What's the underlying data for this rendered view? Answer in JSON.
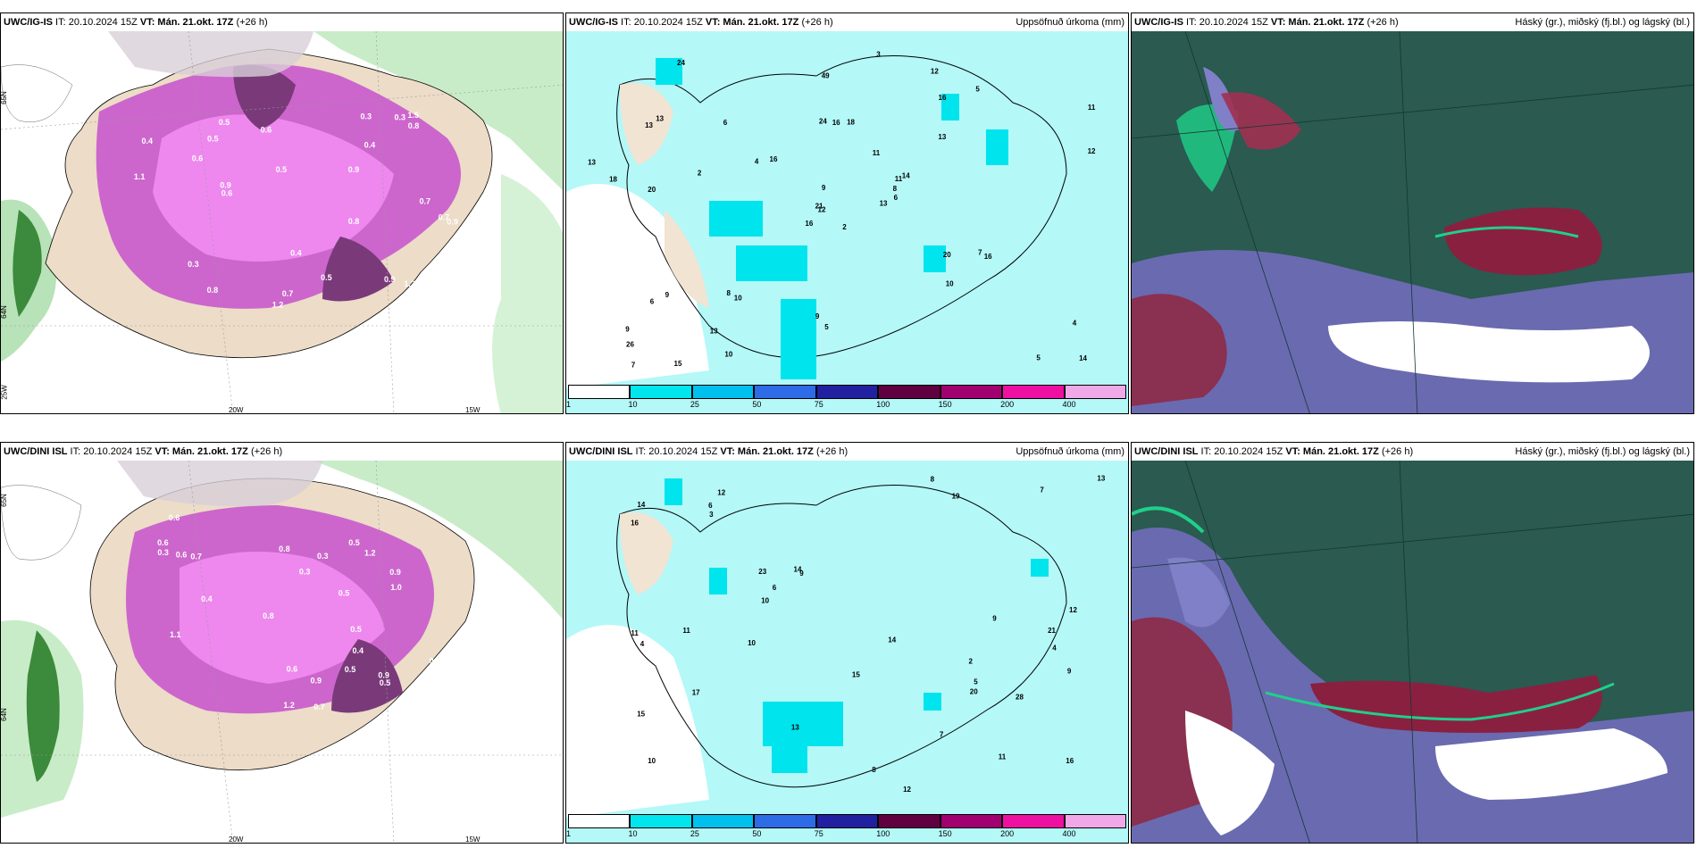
{
  "panels": {
    "top_left": {
      "title_model": "UWC/IG-IS",
      "title_rest": " IT: 20.10.2024 15Z ",
      "title_vt": "VT: Mán. 21.okt. 17Z",
      "title_tail": " (+26 h)",
      "lat_a": "65N",
      "lat_b": "64N",
      "lon_a": "25W",
      "lon_b": "20W",
      "lon_c": "15W"
    },
    "top_mid": {
      "title_model": "UWC/IG-IS",
      "title_rest": " IT: 20.10.2024 15Z ",
      "title_vt": "VT: Mán. 21.okt. 17Z",
      "title_tail": " (+26 h)",
      "right_label": "Uppsöfnuð úrkoma (mm)"
    },
    "top_right": {
      "title_model": "UWC/IG-IS",
      "title_rest": " IT: 20.10.2024 15Z ",
      "title_vt": "VT: Mán. 21.okt. 17Z",
      "title_tail": " (+26 h)",
      "right_label": "Háský (gr.), miðský (fj.bl.) og lágský (bl.)"
    },
    "bot_left": {
      "title_model": "UWC/DINI ISL",
      "title_rest": " IT: 20.10.2024 15Z ",
      "title_vt": "VT: Mán. 21.okt. 17Z",
      "title_tail": " (+26 h)",
      "lat_a": "65N",
      "lat_b": "64N",
      "lon_b": "20W",
      "lon_c": "15W"
    },
    "bot_mid": {
      "title_model": "UWC/DINI ISL",
      "title_rest": " IT: 20.10.2024 15Z ",
      "title_vt": "VT: Mán. 21.okt. 17Z",
      "title_tail": " (+26 h)",
      "right_label": "Uppsöfnuð úrkoma (mm)"
    },
    "bot_right": {
      "title_model": "UWC/DINI ISL",
      "title_rest": " IT: 20.10.2024 15Z ",
      "title_vt": "VT: Mán. 21.okt. 17Z",
      "title_tail": " (+26 h)",
      "right_label": "Háský (gr.), miðský (fj.bl.) og lágský (bl.)"
    }
  },
  "colorbar": {
    "ticks": [
      "1",
      "10",
      "25",
      "50",
      "75",
      "100",
      "150",
      "200",
      "400"
    ],
    "colors": [
      "#ffffff",
      "#00e5ee",
      "#00c0ee",
      "#2e6be6",
      "#2020a0",
      "#600040",
      "#a00070",
      "#ee10a0",
      "#f0a8e8"
    ]
  },
  "precip_labels_top": [
    "2",
    "13",
    "12",
    "9",
    "11",
    "10",
    "12",
    "18",
    "16",
    "13",
    "24",
    "14",
    "20",
    "11",
    "16",
    "13",
    "15",
    "24",
    "11",
    "9",
    "16",
    "26",
    "13",
    "16",
    "14",
    "16",
    "13",
    "49",
    "18",
    "20",
    "12",
    "21",
    "9",
    "9",
    "6",
    "5",
    "8",
    "5",
    "4",
    "7",
    "3",
    "4",
    "2",
    "10",
    "10",
    "13",
    "8",
    "7",
    "5",
    "6",
    "6"
  ],
  "precip_labels_bot": [
    "2",
    "4",
    "10",
    "12",
    "9",
    "11",
    "15",
    "19",
    "23",
    "12",
    "16",
    "11",
    "14",
    "16",
    "13",
    "12",
    "15",
    "14",
    "14",
    "17",
    "13",
    "7",
    "10",
    "9",
    "8",
    "6",
    "5",
    "4",
    "3",
    "9",
    "8",
    "7",
    "6",
    "10",
    "21",
    "28",
    "20",
    "11"
  ],
  "snow_labels_top": [
    "0.4",
    "0.5",
    "0.9",
    "0.7",
    "0.3",
    "1.2",
    "0.8",
    "0.6",
    "1.5",
    "0.9",
    "0.7",
    "0.5",
    "0.4",
    "0.3",
    "1.1",
    "0.8",
    "0.9",
    "0.6",
    "1.2",
    "0.5",
    "0.9",
    "0.7",
    "0.5",
    "0.4",
    "0.3",
    "0.6",
    "0.8"
  ],
  "snow_labels_bot": [
    "0.3",
    "0.5",
    "0.6",
    "0.9",
    "1.2",
    "0.8",
    "0.7",
    "0.5",
    "0.4",
    "1.1",
    "0.9",
    "0.3",
    "0.5",
    "0.6",
    "0.8",
    "1.2",
    "0.7",
    "0.5",
    "0.9",
    "0.4",
    "0.3",
    "0.6",
    "0.5",
    "0.8",
    "1.0",
    "0.7",
    "0.6"
  ]
}
